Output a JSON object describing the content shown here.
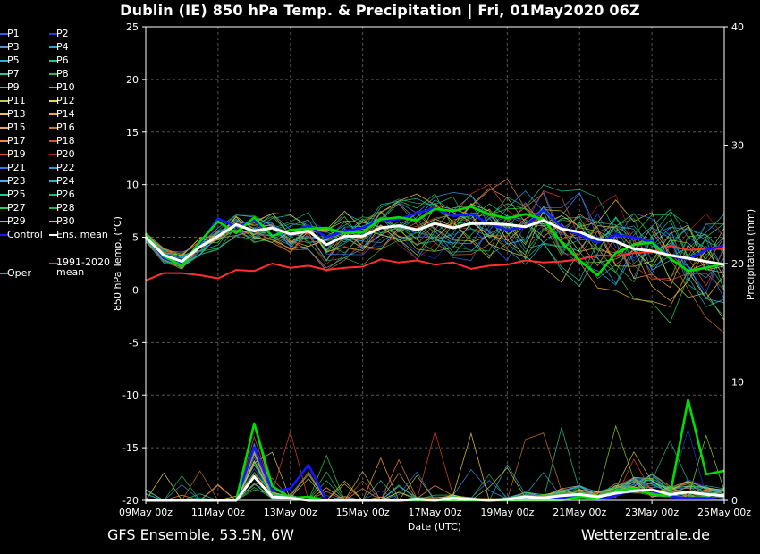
{
  "header": {
    "title": "Dublin  (IE)  850 hPa Temp. & Precipitation | Fri, 01May2020 06Z"
  },
  "footer": {
    "model": "GFS Ensemble, 53.5N, 6W",
    "site": "Wetterzentrale.de"
  },
  "legend": {
    "items": [
      {
        "label": "P1",
        "color": "#2e5bff"
      },
      {
        "label": "P2",
        "color": "#1f3fd0"
      },
      {
        "label": "P3",
        "color": "#4a8fe8"
      },
      {
        "label": "P4",
        "color": "#2aa6d6"
      },
      {
        "label": "P5",
        "color": "#1fb9c9"
      },
      {
        "label": "P6",
        "color": "#17c79b"
      },
      {
        "label": "P7",
        "color": "#22c7a9"
      },
      {
        "label": "P8",
        "color": "#2db84a"
      },
      {
        "label": "P9",
        "color": "#3ad14a"
      },
      {
        "label": "P10",
        "color": "#36e02a"
      },
      {
        "label": "P11",
        "color": "#b9d23a"
      },
      {
        "label": "P12",
        "color": "#e7d54a"
      },
      {
        "label": "P13",
        "color": "#f0c445"
      },
      {
        "label": "P14",
        "color": "#f2a93b"
      },
      {
        "label": "P15",
        "color": "#e9a55f"
      },
      {
        "label": "P16",
        "color": "#c9782e"
      },
      {
        "label": "P17",
        "color": "#f08a3a"
      },
      {
        "label": "P18",
        "color": "#d9502a"
      },
      {
        "label": "P19",
        "color": "#e8452d"
      },
      {
        "label": "P20",
        "color": "#b0241a"
      },
      {
        "label": "P21",
        "color": "#2f77e0"
      },
      {
        "label": "P22",
        "color": "#2e9be0"
      },
      {
        "label": "P23",
        "color": "#3fb3e8"
      },
      {
        "label": "P24",
        "color": "#29b5c0"
      },
      {
        "label": "P25",
        "color": "#26c49a"
      },
      {
        "label": "P26",
        "color": "#20b878"
      },
      {
        "label": "P27",
        "color": "#33c850"
      },
      {
        "label": "P28",
        "color": "#27b24a"
      },
      {
        "label": "P29",
        "color": "#9ad12a"
      },
      {
        "label": "P30",
        "color": "#d2c63a"
      },
      {
        "label": "Control",
        "color": "#1616ff"
      },
      {
        "label": "Ens. mean",
        "color": "#ffffff"
      },
      {
        "label": "1991-2020 mean",
        "color": "#ff3030"
      },
      {
        "label": "Oper",
        "color": "#00dd00"
      }
    ]
  },
  "chart_data": {
    "type": "line",
    "xlabel": "Date (UTC)",
    "ylabel": "850 hPa Temp. (°C)",
    "y2label": "Precipitation (mm)",
    "x_ticks": [
      "09May 00z",
      "11May 00z",
      "13May 00z",
      "15May 00z",
      "17May 00z",
      "19May 00z",
      "21May 00z",
      "23May 00z",
      "25May 00z"
    ],
    "x_range_hours": [
      0,
      384
    ],
    "y_ticks": [
      25,
      20,
      15,
      10,
      5,
      0,
      -5,
      -10,
      -15,
      -20
    ],
    "ylim": [
      -20,
      25
    ],
    "y2_ticks": [
      40,
      30,
      20,
      10,
      0
    ],
    "y2lim": [
      0,
      40
    ],
    "grid": true,
    "legend_position": "left",
    "series": [
      {
        "name": "Ens. mean",
        "color": "#ffffff",
        "x_hours": [
          0,
          12,
          24,
          36,
          48,
          60,
          72,
          84,
          96,
          108,
          120,
          132,
          144,
          156,
          168,
          180,
          192,
          204,
          216,
          228,
          240,
          252,
          264,
          276,
          288,
          300,
          312,
          324,
          336,
          348,
          360,
          372,
          384
        ],
        "temp": [
          5.0,
          3.3,
          2.7,
          4.1,
          5.1,
          6.2,
          5.6,
          5.9,
          5.3,
          5.6,
          4.3,
          5.1,
          5.1,
          5.9,
          6.1,
          5.7,
          6.3,
          5.9,
          6.3,
          6.3,
          6.2,
          6.0,
          6.6,
          5.8,
          5.5,
          4.8,
          4.6,
          3.9,
          3.7,
          3.3,
          3.0,
          2.7,
          2.4
        ],
        "precip": [
          0,
          0,
          0,
          0,
          0,
          0,
          2.0,
          0.3,
          0.2,
          0,
          0,
          0,
          0,
          0,
          0,
          0.1,
          0,
          0.2,
          0.1,
          0,
          0.1,
          0.3,
          0.2,
          0.4,
          0.5,
          0.3,
          0.6,
          0.8,
          0.9,
          0.5,
          0.7,
          0.5,
          0.4
        ]
      },
      {
        "name": "Control",
        "color": "#1616ff",
        "x_hours": [
          0,
          12,
          24,
          36,
          48,
          60,
          72,
          84,
          96,
          108,
          120,
          132,
          144,
          156,
          168,
          180,
          192,
          204,
          216,
          228,
          240,
          252,
          264,
          276,
          288,
          300,
          312,
          324,
          336,
          348,
          360,
          372,
          384
        ],
        "temp": [
          5.3,
          3.0,
          2.5,
          4.4,
          6.8,
          6.0,
          6.6,
          5.2,
          5.5,
          6.1,
          5.0,
          5.6,
          5.9,
          6.6,
          6.7,
          7.3,
          7.8,
          7.0,
          7.2,
          6.3,
          5.7,
          6.0,
          7.6,
          6.0,
          5.2,
          4.5,
          5.2,
          5.0,
          4.6,
          3.2,
          2.9,
          3.8,
          4.2
        ],
        "precip": [
          0,
          0,
          0,
          0,
          0,
          0,
          4.5,
          0.8,
          1.0,
          3.0,
          0,
          0,
          0,
          0,
          0,
          0,
          0,
          0,
          0,
          0,
          0,
          0,
          0,
          0.2,
          0.5,
          0,
          0.4,
          0.9,
          0.8,
          0.3,
          0.2,
          0.2,
          0
        ]
      },
      {
        "name": "1991-2020 mean",
        "color": "#ff3030",
        "x_hours": [
          0,
          12,
          24,
          36,
          48,
          60,
          72,
          84,
          96,
          108,
          120,
          132,
          144,
          156,
          168,
          180,
          192,
          204,
          216,
          228,
          240,
          252,
          264,
          276,
          288,
          300,
          312,
          324,
          336,
          348,
          360,
          372,
          384
        ],
        "temp": [
          0.9,
          1.6,
          1.6,
          1.4,
          1.1,
          1.9,
          1.8,
          2.5,
          2.1,
          2.3,
          1.9,
          2.1,
          2.2,
          2.9,
          2.6,
          2.8,
          2.4,
          2.6,
          2.0,
          2.3,
          2.4,
          2.8,
          2.6,
          2.7,
          2.9,
          3.3,
          3.2,
          3.5,
          3.6,
          4.2,
          3.8,
          3.9,
          3.9
        ],
        "precip": []
      },
      {
        "name": "Oper",
        "color": "#00dd00",
        "x_hours": [
          0,
          12,
          24,
          36,
          48,
          60,
          72,
          84,
          96,
          108,
          120,
          132,
          144,
          156,
          168,
          180,
          192,
          204,
          216,
          228,
          240,
          252,
          264,
          276,
          288,
          300,
          312,
          324,
          336,
          348,
          360,
          372,
          384
        ],
        "temp": [
          5.3,
          3.2,
          2.3,
          4.6,
          6.5,
          5.4,
          6.9,
          5.1,
          5.7,
          5.8,
          5.9,
          5.4,
          5.5,
          6.7,
          6.9,
          6.6,
          7.7,
          7.5,
          7.9,
          7.2,
          6.8,
          7.2,
          6.7,
          4.5,
          2.8,
          1.4,
          3.5,
          4.3,
          4.5,
          3.0,
          1.8,
          2.1,
          2.5
        ],
        "precip": [
          0,
          0,
          0,
          0,
          0,
          0,
          6.5,
          1.2,
          0.2,
          0.3,
          0,
          0,
          0,
          0,
          0,
          0,
          0,
          0,
          0,
          0,
          0,
          0,
          0,
          0,
          0.3,
          0.2,
          0.8,
          1.0,
          0.5,
          0.4,
          8.5,
          2.2,
          2.5
        ]
      }
    ]
  }
}
